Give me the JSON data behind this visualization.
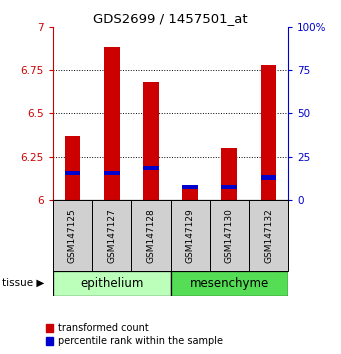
{
  "title": "GDS2699 / 1457501_at",
  "samples": [
    "GSM147125",
    "GSM147127",
    "GSM147128",
    "GSM147129",
    "GSM147130",
    "GSM147132"
  ],
  "red_values": [
    6.37,
    6.88,
    6.68,
    6.07,
    6.3,
    6.78
  ],
  "blue_values": [
    6.155,
    6.155,
    6.185,
    6.075,
    6.075,
    6.13
  ],
  "ylim_left": [
    6.0,
    7.0
  ],
  "ylim_right": [
    0,
    100
  ],
  "yticks_left": [
    6.0,
    6.25,
    6.5,
    6.75,
    7.0
  ],
  "ytick_labels_left": [
    "6",
    "6.25",
    "6.5",
    "6.75",
    "7"
  ],
  "yticks_right": [
    0,
    25,
    50,
    75,
    100
  ],
  "ytick_labels_right": [
    "0",
    "25",
    "50",
    "75",
    "100%"
  ],
  "bar_width": 0.4,
  "red_color": "#cc0000",
  "blue_color": "#0000cc",
  "base_value": 6.0,
  "blue_bar_height": 0.025,
  "legend_red": "transformed count",
  "legend_blue": "percentile rank within the sample",
  "axis_left_color": "#cc0000",
  "axis_right_color": "#0000cc",
  "epi_color": "#bbffbb",
  "mes_color": "#55dd55",
  "gray_color": "#d0d0d0",
  "grid_yticks": [
    6.25,
    6.5,
    6.75
  ],
  "fig_width": 3.41,
  "fig_height": 3.54,
  "dpi": 100
}
